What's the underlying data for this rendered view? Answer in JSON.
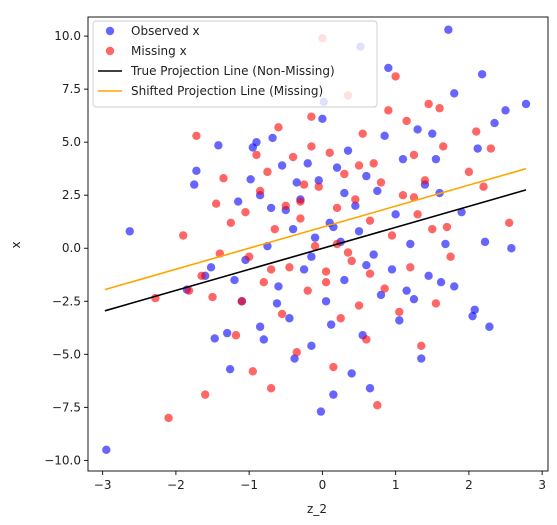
{
  "chart_data": {
    "type": "scatter",
    "xlabel": "z_2",
    "ylabel": "x",
    "xlim": [
      -3.2,
      3.08
    ],
    "ylim": [
      -10.5,
      10.9
    ],
    "xticks": [
      -3,
      -2,
      -1,
      0,
      1,
      2,
      3
    ],
    "yticks": [
      -10.0,
      -7.5,
      -5.0,
      -2.5,
      0.0,
      2.5,
      5.0,
      7.5,
      10.0
    ],
    "ytick_labels": [
      "−10.0",
      "−7.5",
      "−5.0",
      "−2.5",
      "0.0",
      "2.5",
      "5.0",
      "7.5",
      "10.0"
    ],
    "xtick_labels": [
      "−3",
      "−2",
      "−1",
      "0",
      "1",
      "2",
      "3"
    ],
    "grid": false,
    "legend_position": "top-left",
    "series": [
      {
        "name": "Observed x",
        "kind": "scatter",
        "color": "#0000ff",
        "points": [
          [
            -2.95,
            -9.5
          ],
          [
            -2.63,
            0.8
          ],
          [
            -1.75,
            3.0
          ],
          [
            -1.72,
            3.65
          ],
          [
            -1.85,
            -1.95
          ],
          [
            -1.6,
            -1.3
          ],
          [
            -1.52,
            -0.9
          ],
          [
            -1.47,
            -4.25
          ],
          [
            -1.42,
            4.85
          ],
          [
            -1.3,
            -4.0
          ],
          [
            -1.26,
            -5.7
          ],
          [
            -1.15,
            2.2
          ],
          [
            -1.1,
            -2.5
          ],
          [
            -1.05,
            -0.55
          ],
          [
            -0.98,
            3.25
          ],
          [
            -0.95,
            4.75
          ],
          [
            -0.9,
            5.0
          ],
          [
            -0.85,
            -3.7
          ],
          [
            -0.8,
            -4.3
          ],
          [
            -0.75,
            0.1
          ],
          [
            -0.68,
            5.2
          ],
          [
            -0.62,
            -2.6
          ],
          [
            -0.6,
            -1.8
          ],
          [
            -0.55,
            3.9
          ],
          [
            -0.5,
            1.8
          ],
          [
            -0.45,
            -3.3
          ],
          [
            -0.4,
            0.9
          ],
          [
            -0.38,
            -5.2
          ],
          [
            -0.3,
            2.3
          ],
          [
            -0.25,
            -1.0
          ],
          [
            -0.2,
            4.0
          ],
          [
            -0.15,
            -4.6
          ],
          [
            -0.1,
            0.5
          ],
          [
            -0.05,
            3.2
          ],
          [
            -0.02,
            -7.7
          ],
          [
            0.0,
            6.1
          ],
          [
            0.02,
            6.9
          ],
          [
            0.05,
            -2.5
          ],
          [
            0.1,
            1.2
          ],
          [
            0.12,
            -3.6
          ],
          [
            0.15,
            -6.9
          ],
          [
            0.2,
            3.8
          ],
          [
            0.25,
            0.3
          ],
          [
            0.3,
            -1.5
          ],
          [
            0.35,
            4.6
          ],
          [
            0.4,
            -5.9
          ],
          [
            0.45,
            2.0
          ],
          [
            0.5,
            0.8
          ],
          [
            0.52,
            9.5
          ],
          [
            0.55,
            -4.1
          ],
          [
            0.6,
            3.4
          ],
          [
            0.65,
            -6.6
          ],
          [
            0.7,
            -0.3
          ],
          [
            0.75,
            2.7
          ],
          [
            0.8,
            -2.2
          ],
          [
            0.85,
            5.3
          ],
          [
            0.9,
            8.5
          ],
          [
            0.95,
            -1.0
          ],
          [
            1.0,
            1.6
          ],
          [
            1.05,
            -3.4
          ],
          [
            1.1,
            4.2
          ],
          [
            1.2,
            0.2
          ],
          [
            1.25,
            -2.4
          ],
          [
            1.3,
            5.6
          ],
          [
            1.35,
            -5.2
          ],
          [
            1.4,
            3.0
          ],
          [
            1.45,
            -1.3
          ],
          [
            1.5,
            5.4
          ],
          [
            1.55,
            4.2
          ],
          [
            1.6,
            2.6
          ],
          [
            1.62,
            -1.6
          ],
          [
            1.68,
            0.2
          ],
          [
            1.72,
            10.3
          ],
          [
            1.8,
            7.3
          ],
          [
            1.9,
            1.7
          ],
          [
            2.05,
            -3.2
          ],
          [
            2.08,
            -2.9
          ],
          [
            2.12,
            4.7
          ],
          [
            2.18,
            8.2
          ],
          [
            2.22,
            0.3
          ],
          [
            2.28,
            -3.7
          ],
          [
            2.35,
            5.9
          ],
          [
            2.5,
            6.5
          ],
          [
            2.58,
            0.0
          ],
          [
            2.78,
            6.8
          ],
          [
            -1.2,
            -1.5
          ],
          [
            -0.7,
            1.9
          ],
          [
            0.3,
            2.6
          ],
          [
            -0.35,
            3.1
          ],
          [
            0.6,
            -0.8
          ],
          [
            1.15,
            -2.0
          ],
          [
            -0.85,
            2.5
          ],
          [
            0.15,
            1.0
          ],
          [
            -0.15,
            -0.4
          ],
          [
            1.8,
            -1.8
          ]
        ]
      },
      {
        "name": "Missing x",
        "kind": "scatter",
        "color": "#ff0000",
        "points": [
          [
            -2.28,
            -2.35
          ],
          [
            -2.1,
            -8.0
          ],
          [
            -1.9,
            0.6
          ],
          [
            -1.82,
            -2.0
          ],
          [
            -1.72,
            5.3
          ],
          [
            -1.65,
            -1.3
          ],
          [
            -1.6,
            -6.9
          ],
          [
            -1.5,
            -2.3
          ],
          [
            -1.45,
            2.1
          ],
          [
            -1.4,
            -0.25
          ],
          [
            -1.35,
            3.3
          ],
          [
            -1.25,
            1.2
          ],
          [
            -1.18,
            -4.1
          ],
          [
            -1.1,
            -2.5
          ],
          [
            -1.0,
            -0.4
          ],
          [
            -0.95,
            -5.8
          ],
          [
            -0.9,
            4.4
          ],
          [
            -0.85,
            2.7
          ],
          [
            -0.8,
            -1.6
          ],
          [
            -0.75,
            3.6
          ],
          [
            -0.7,
            -6.6
          ],
          [
            -0.65,
            0.9
          ],
          [
            -0.6,
            5.7
          ],
          [
            -0.55,
            -3.1
          ],
          [
            -0.5,
            2.0
          ],
          [
            -0.45,
            -0.9
          ],
          [
            -0.4,
            4.3
          ],
          [
            -0.35,
            -4.9
          ],
          [
            -0.3,
            1.4
          ],
          [
            -0.25,
            3.0
          ],
          [
            -0.2,
            -2.0
          ],
          [
            -0.15,
            6.2
          ],
          [
            -0.1,
            0.1
          ],
          [
            -0.05,
            2.9
          ],
          [
            0.0,
            9.9
          ],
          [
            0.05,
            -1.1
          ],
          [
            0.1,
            4.5
          ],
          [
            0.15,
            -5.6
          ],
          [
            0.2,
            1.9
          ],
          [
            0.25,
            -3.3
          ],
          [
            0.3,
            3.5
          ],
          [
            0.35,
            7.2
          ],
          [
            0.4,
            -0.6
          ],
          [
            0.45,
            2.3
          ],
          [
            0.5,
            -2.7
          ],
          [
            0.55,
            5.4
          ],
          [
            0.6,
            -4.3
          ],
          [
            0.65,
            1.3
          ],
          [
            0.7,
            4.0
          ],
          [
            0.75,
            -7.4
          ],
          [
            0.8,
            3.1
          ],
          [
            0.85,
            -1.9
          ],
          [
            0.9,
            6.5
          ],
          [
            0.95,
            0.6
          ],
          [
            1.0,
            8.1
          ],
          [
            1.05,
            -3.0
          ],
          [
            1.1,
            2.5
          ],
          [
            1.15,
            6.0
          ],
          [
            1.2,
            -0.9
          ],
          [
            1.25,
            4.4
          ],
          [
            1.3,
            1.6
          ],
          [
            1.35,
            -4.6
          ],
          [
            1.4,
            3.2
          ],
          [
            1.45,
            6.8
          ],
          [
            1.5,
            0.9
          ],
          [
            1.55,
            -2.6
          ],
          [
            1.6,
            6.6
          ],
          [
            1.65,
            4.8
          ],
          [
            1.7,
            1.0
          ],
          [
            1.75,
            -0.4
          ],
          [
            2.0,
            3.6
          ],
          [
            2.1,
            5.5
          ],
          [
            2.2,
            2.9
          ],
          [
            2.3,
            4.7
          ],
          [
            2.55,
            1.2
          ],
          [
            -0.7,
            -1.0
          ],
          [
            0.2,
            0.2
          ],
          [
            -0.3,
            2.2
          ],
          [
            0.5,
            3.9
          ],
          [
            0.05,
            -1.6
          ],
          [
            -1.05,
            1.7
          ],
          [
            0.65,
            -1.2
          ],
          [
            1.25,
            2.4
          ],
          [
            -0.15,
            4.8
          ],
          [
            0.35,
            -0.2
          ]
        ]
      },
      {
        "name": "True Projection Line (Non-Missing)",
        "kind": "line",
        "color": "#000000",
        "points": [
          [
            -2.97,
            -2.95
          ],
          [
            2.78,
            2.75
          ]
        ]
      },
      {
        "name": "Shifted Projection Line (Missing)",
        "kind": "line",
        "color": "#ffa500",
        "points": [
          [
            -2.97,
            -1.95
          ],
          [
            2.78,
            3.75
          ]
        ]
      }
    ]
  }
}
